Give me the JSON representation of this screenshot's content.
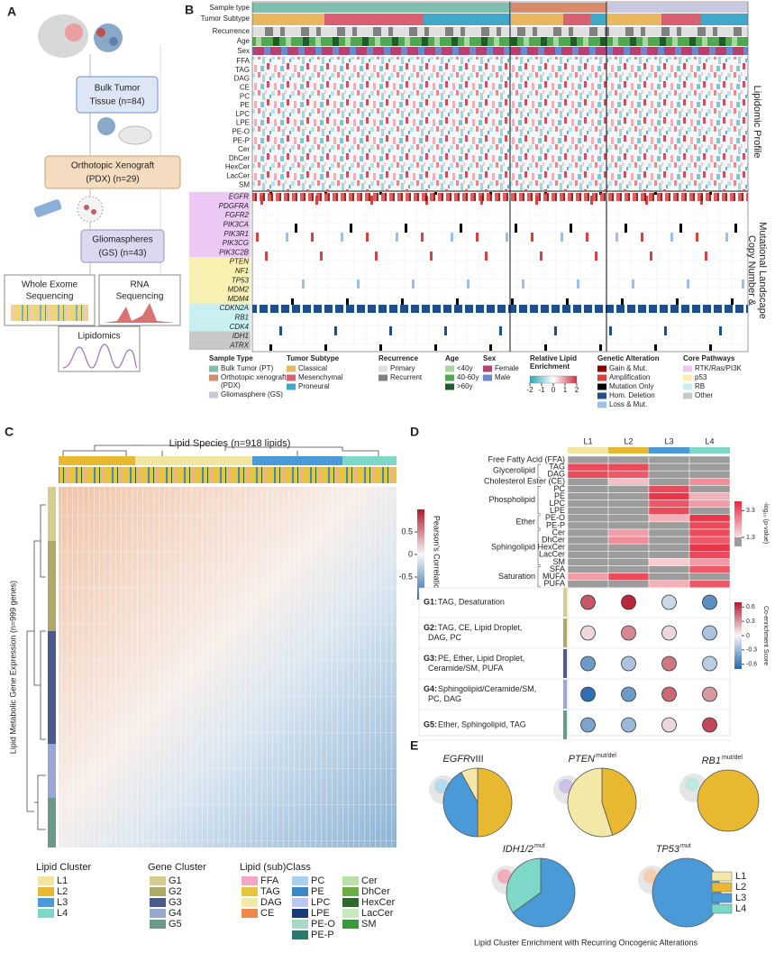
{
  "panel_a": {
    "label": "A",
    "boxes": [
      {
        "lines": [
          "Bulk Tumor",
          "Tissue (n=84)"
        ]
      },
      {
        "lines": [
          "Orthotopic Xenograft",
          "(PDX) (n=29)"
        ]
      },
      {
        "lines": [
          "Gliomaspheres",
          "(GS) (n=43)"
        ]
      }
    ],
    "assays": [
      {
        "lines": [
          "Whole Exome",
          "Sequencing"
        ]
      },
      {
        "lines": [
          "RNA",
          "Sequencing"
        ]
      },
      {
        "lines": [
          "Lipidomics"
        ]
      }
    ]
  },
  "panel_b": {
    "label": "B",
    "annotations": [
      "Sample type",
      "Tumor Subtype",
      "Recurrence",
      "Age",
      "Sex"
    ],
    "lipids": [
      "FFA",
      "TAG",
      "DAG",
      "CE",
      "PC",
      "PE",
      "LPC",
      "LPE",
      "PE-O",
      "PE-P",
      "Cer",
      "DhCer",
      "HexCer",
      "LacCer",
      "SM"
    ],
    "genes": [
      {
        "name": "EGFR",
        "pathway": "RTK/Ras/PI3K"
      },
      {
        "name": "PDGFRA",
        "pathway": "RTK/Ras/PI3K"
      },
      {
        "name": "FGFR2",
        "pathway": "RTK/Ras/PI3K"
      },
      {
        "name": "PIK3CA",
        "pathway": "RTK/Ras/PI3K"
      },
      {
        "name": "PIK3R1",
        "pathway": "RTK/Ras/PI3K"
      },
      {
        "name": "PIK3CG",
        "pathway": "RTK/Ras/PI3K"
      },
      {
        "name": "PIK3C2B",
        "pathway": "RTK/Ras/PI3K"
      },
      {
        "name": "PTEN",
        "pathway": "p53"
      },
      {
        "name": "NF1",
        "pathway": "p53"
      },
      {
        "name": "TP53",
        "pathway": "p53"
      },
      {
        "name": "MDM2",
        "pathway": "p53"
      },
      {
        "name": "MDM4",
        "pathway": "p53"
      },
      {
        "name": "CDKN2A",
        "pathway": "RB"
      },
      {
        "name": "RB1",
        "pathway": "RB"
      },
      {
        "name": "CDK4",
        "pathway": "RB"
      },
      {
        "name": "IDH1",
        "pathway": "Other"
      },
      {
        "name": "ATRX",
        "pathway": "Other"
      }
    ],
    "side_labels": [
      {
        "lines": [
          "Lipidomic Profile"
        ]
      },
      {
        "lines": [
          "Copy Number &",
          "Mutational Landscape"
        ]
      }
    ],
    "legends": [
      {
        "title": "Sample Type",
        "items": [
          {
            "name": "Bulk Tumor (PT)",
            "color": "#7fbfae"
          },
          {
            "lines": [
              "Orthotopic xenograft",
              "(PDX)"
            ],
            "color": "#d98a6a"
          },
          {
            "name": "Gliomasphere (GS)",
            "color": "#c8c8e0"
          }
        ]
      },
      {
        "title": "Tumor Subtype",
        "items": [
          {
            "name": "Classical",
            "color": "#e8b860"
          },
          {
            "name": "Mesenchymal",
            "color": "#d96070"
          },
          {
            "name": "Proneural",
            "color": "#40a8c8"
          }
        ]
      },
      {
        "title": "Recurrence",
        "items": [
          {
            "name": "Primary",
            "color": "#e0e0e0"
          },
          {
            "name": "Recurrent",
            "color": "#808080"
          }
        ]
      },
      {
        "title": "Age",
        "items": [
          {
            "name": "<40y",
            "color": "#a8d8a0"
          },
          {
            "name": "40-60y",
            "color": "#50a850"
          },
          {
            "name": ">60y",
            "color": "#1f5a2a"
          }
        ]
      },
      {
        "title": "Sex",
        "items": [
          {
            "name": "Female",
            "color": "#b84070"
          },
          {
            "name": "Male",
            "color": "#6a8ad0"
          }
        ]
      },
      {
        "title": "Genetic Alteration",
        "items": [
          {
            "name": "Gain & Mut.",
            "color": "#8b0000"
          },
          {
            "name": "Amplification",
            "color": "#d94040"
          },
          {
            "name": "Mutation Only",
            "color": "#000000"
          },
          {
            "name": "Hom. Deletion",
            "color": "#1f4e8c"
          },
          {
            "name": "Loss & Mut.",
            "color": "#9dbfe8"
          }
        ]
      },
      {
        "title": "Core Pathways",
        "items": [
          {
            "name": "RTK/Ras/PI3K",
            "color": "#ecc8f4"
          },
          {
            "name": "p53",
            "color": "#f8f0b0"
          },
          {
            "name": "RB",
            "color": "#c8f0f0"
          },
          {
            "name": "Other",
            "color": "#c8c8c8"
          }
        ]
      }
    ],
    "lipid_enrichment": {
      "title_lines": [
        "Relative Lipid",
        "Enrichment"
      ],
      "lim": [
        -2,
        2
      ],
      "ticks": [
        -2,
        -1,
        0,
        1,
        2
      ]
    }
  },
  "panel_c": {
    "label": "C",
    "title": "Lipid Species (n=918 lipids)",
    "y_label": "Lipid  Metabolic Gene Expression (n=999 genes)",
    "colorbar": {
      "title": "Pearson's Correlation",
      "lim": [
        -1,
        1
      ],
      "ticks": [
        0.5,
        0,
        -0.5
      ]
    },
    "lipid_cluster": {
      "title": "Lipid Cluster",
      "items": [
        {
          "name": "L1",
          "color": "#f0e6a0"
        },
        {
          "name": "L2",
          "color": "#e8b830"
        },
        {
          "name": "L3",
          "color": "#4a9ad8"
        },
        {
          "name": "L4",
          "color": "#7dd8c8"
        }
      ]
    },
    "gene_cluster": {
      "title": "Gene Cluster",
      "items": [
        {
          "name": "G1",
          "color": "#d4cc90"
        },
        {
          "name": "G2",
          "color": "#b0a868"
        },
        {
          "name": "G3",
          "color": "#4a5a8a"
        },
        {
          "name": "G4",
          "color": "#98a8d0"
        },
        {
          "name": "G5",
          "color": "#6a9a8a"
        }
      ]
    },
    "lipid_class": {
      "title": "Lipid (sub)Class",
      "items": [
        {
          "name": "FFA",
          "color": "#f4a6c8"
        },
        {
          "name": "TAG",
          "color": "#e8c43a"
        },
        {
          "name": "DAG",
          "color": "#f3e9a8"
        },
        {
          "name": "CE",
          "color": "#f0884a"
        },
        {
          "name": "PC",
          "color": "#a8d0f0"
        },
        {
          "name": "PE",
          "color": "#3a88c8"
        },
        {
          "name": "LPC",
          "color": "#b8c8f0"
        },
        {
          "name": "LPE",
          "color": "#1a3a7a"
        },
        {
          "name": "PE-O",
          "color": "#a8d8c8"
        },
        {
          "name": "PE-P",
          "color": "#2a7a70"
        },
        {
          "name": "Cer",
          "color": "#b8e0a8"
        },
        {
          "name": "DhCer",
          "color": "#6ab040"
        },
        {
          "name": "HexCer",
          "color": "#2a6a2a"
        },
        {
          "name": "LacCer",
          "color": "#c8e8c0"
        },
        {
          "name": "SM",
          "color": "#3a9a3a"
        }
      ]
    }
  },
  "panel_d": {
    "label": "D"
  },
  "panel_e": {
    "label": "E",
    "caption": "Lipid Cluster Enrichment with Recurring Oncogenic Alterations",
    "legend": [
      {
        "name": "L1",
        "color": "#f3e8a8"
      },
      {
        "name": "L2",
        "color": "#e8b830"
      },
      {
        "name": "L3",
        "color": "#4a9ad8"
      },
      {
        "name": "L4",
        "color": "#7dd8c8"
      }
    ]
  },
  "chart_data": [
    {
      "type": "heatmap",
      "columns": [
        "L1",
        "L2",
        "L3",
        "L4"
      ],
      "column_colors": [
        "#f0e6a0",
        "#e8b830",
        "#4a9ad8",
        "#7dd8c8"
      ],
      "colorbar_title": "-log₁₀ (p-value)",
      "colorlim": [
        1.3,
        4
      ],
      "colorticks": [
        3.3,
        1.3
      ],
      "row_groups": [
        {
          "label": "Free Fatty Acid (FFA)",
          "values": [
            [
              1,
              1,
              1,
              1
            ]
          ]
        },
        {
          "label": "Glycerolipid",
          "rows": [
            "TAG",
            "DAG"
          ],
          "values": [
            [
              3.5,
              3.5,
              1,
              1
            ],
            [
              3.5,
              3.3,
              1,
              1
            ]
          ]
        },
        {
          "label": "Cholesterol Ester (CE)",
          "values": [
            [
              1,
              1.8,
              1,
              2.5
            ]
          ]
        },
        {
          "label": "Phospholipid",
          "rows": [
            "PC",
            "PE",
            "LPC",
            "LPE"
          ],
          "values": [
            [
              1,
              1,
              3.5,
              1
            ],
            [
              1,
              1,
              3.8,
              2
            ],
            [
              1,
              1,
              3.3,
              2.3
            ],
            [
              1,
              1,
              3.5,
              1
            ]
          ]
        },
        {
          "label": "Ether",
          "rows": [
            "PE-O",
            "PE-P"
          ],
          "values": [
            [
              1,
              1,
              2,
              3.8
            ],
            [
              1,
              1,
              1,
              3.5
            ]
          ]
        },
        {
          "label": "Sphingolipid",
          "rows": [
            "Cer",
            "DhCer",
            "HexCer",
            "LacCer",
            "SM"
          ],
          "values": [
            [
              1,
              2.3,
              1,
              3.5
            ],
            [
              1,
              2.5,
              1,
              3.3
            ],
            [
              1,
              1,
              1,
              3.8
            ],
            [
              1,
              1,
              1,
              3.5
            ],
            [
              1,
              1,
              1.6,
              2.3
            ]
          ]
        },
        {
          "label": "Saturation",
          "rows": [
            "SFA",
            "MUFA",
            "PUFA"
          ],
          "values": [
            [
              1,
              1,
              1,
              3.3
            ],
            [
              2.3,
              3.5,
              1,
              1
            ],
            [
              1,
              1,
              2,
              3.3
            ]
          ]
        }
      ]
    },
    {
      "type": "dot",
      "colorbar_title": "Co-enrichment Score",
      "colorlim": [
        -0.7,
        0.7
      ],
      "colorticks": [
        0.6,
        0.3,
        0,
        -0.3,
        -0.6
      ],
      "series": [
        {
          "name": "G1:",
          "label_lines": [
            "TAG, Desaturation"
          ],
          "color": "#d4cc90",
          "values": [
            0.5,
            0.65,
            -0.15,
            -0.5
          ]
        },
        {
          "name": "G2:",
          "label_lines": [
            "TAG, CE, Lipid Droplet,",
            "DAG, PC"
          ],
          "color": "#b0a868",
          "values": [
            0.1,
            0.35,
            0.1,
            -0.25
          ]
        },
        {
          "name": "G3:",
          "label_lines": [
            "PE, Ether, Lipid Droplet,",
            "Ceramide/SM, PUFA"
          ],
          "color": "#4a5a8a",
          "values": [
            -0.45,
            -0.25,
            0.4,
            -0.2
          ]
        },
        {
          "name": "G4:",
          "label_lines": [
            "Sphingolipid/Ceramide/SM,",
            "PC, DAG"
          ],
          "color": "#98a8d0",
          "values": [
            -0.65,
            -0.45,
            0.45,
            0.3
          ]
        },
        {
          "name": "G5:",
          "label_lines": [
            "Ether, Sphingolipid, TAG"
          ],
          "color": "#6a9a8a",
          "values": [
            -0.4,
            -0.3,
            0.1,
            0.55
          ]
        }
      ]
    },
    {
      "type": "pie",
      "title": "EGFR",
      "title_suffix": "vIII",
      "categories": [
        "L2",
        "L3",
        "L1"
      ],
      "values": [
        50,
        42,
        8
      ]
    },
    {
      "type": "pie",
      "title": "PTEN",
      "title_sup": "mut/del",
      "categories": [
        "L2",
        "L1"
      ],
      "values": [
        45,
        55
      ]
    },
    {
      "type": "pie",
      "title": "RB1",
      "title_sup": "mut/del",
      "categories": [
        "L2"
      ],
      "values": [
        100
      ]
    },
    {
      "type": "pie",
      "title": "IDH1/2",
      "title_sup": "mut",
      "categories": [
        "L3",
        "L4"
      ],
      "values": [
        65,
        35
      ]
    },
    {
      "type": "pie",
      "title": "TP53",
      "title_sup": "mut",
      "categories": [
        "L3"
      ],
      "values": [
        100
      ]
    }
  ]
}
